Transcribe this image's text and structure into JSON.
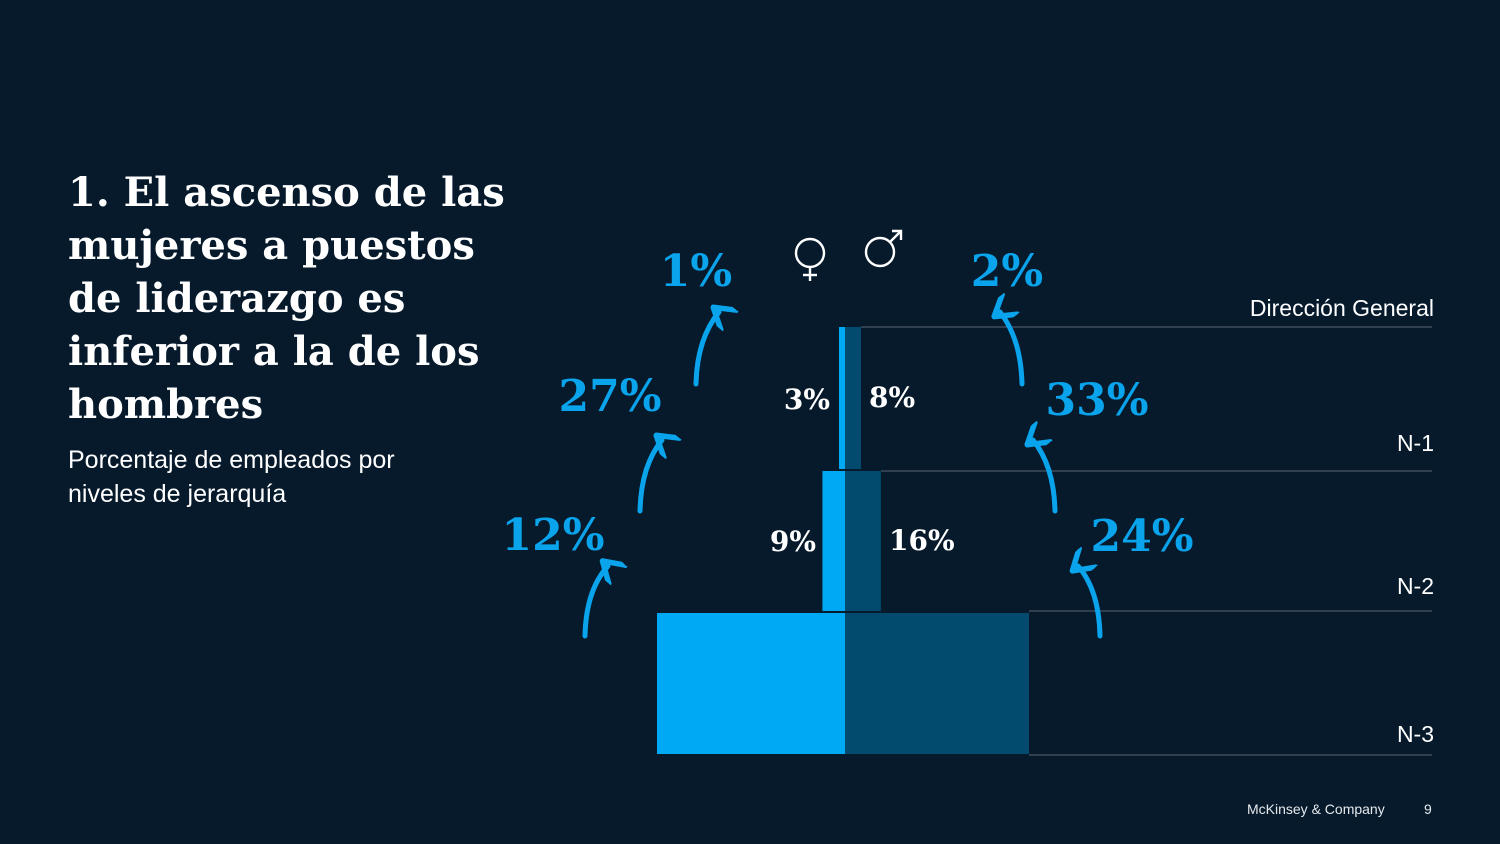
{
  "title": "1. El ascenso de las mujeres a puestos de liderazgo es inferior a la de los hombres",
  "subtitle": "Porcentaje de empleados por niveles de jerarquía",
  "footer": {
    "brand": "McKinsey & Company",
    "page_number": "9"
  },
  "legend": {
    "women_icon": "female-symbol-icon",
    "men_icon": "male-symbol-icon"
  },
  "colors": {
    "background": "#061a2c",
    "women": "#00a9f4",
    "men": "#024a6e",
    "accent": "#0aa4ec",
    "gridline": "#4a5866"
  },
  "chart_data": {
    "type": "bar",
    "subtype": "population-pyramid",
    "title": "1. El ascenso de las mujeres a puestos de liderazgo es inferior a la de los hombres",
    "levels": [
      "Dirección General",
      "N-1",
      "N-2",
      "N-3"
    ],
    "series": [
      {
        "name": "Mujeres",
        "icon": "female-symbol-icon",
        "values": [
          null,
          3,
          9,
          null
        ]
      },
      {
        "name": "Hombres",
        "icon": "male-symbol-icon",
        "values": [
          null,
          8,
          16,
          null
        ]
      }
    ],
    "bar_labels": {
      "women": [
        "3%",
        "9%"
      ],
      "men": [
        "8%",
        "16%"
      ]
    },
    "promotion_rates": {
      "women": [
        {
          "from": "N-3",
          "to": "N-2",
          "label": "12%"
        },
        {
          "from": "N-2",
          "to": "N-1",
          "label": "27%"
        },
        {
          "from": "N-1",
          "to": "Dirección General",
          "label": "1%"
        }
      ],
      "men": [
        {
          "from": "N-3",
          "to": "N-2",
          "label": "24%"
        },
        {
          "from": "N-2",
          "to": "N-1",
          "label": "33%"
        },
        {
          "from": "N-1",
          "to": "Dirección General",
          "label": "2%"
        }
      ]
    },
    "relative_widths": {
      "women": {
        "N-3": 100,
        "N-2": 12,
        "N-1": 3.2
      },
      "men": {
        "N-3": 100,
        "N-2": 19.5,
        "N-1": 8.7
      }
    },
    "level_labels": [
      "Dirección General",
      "N-1",
      "N-2",
      "N-3"
    ]
  }
}
